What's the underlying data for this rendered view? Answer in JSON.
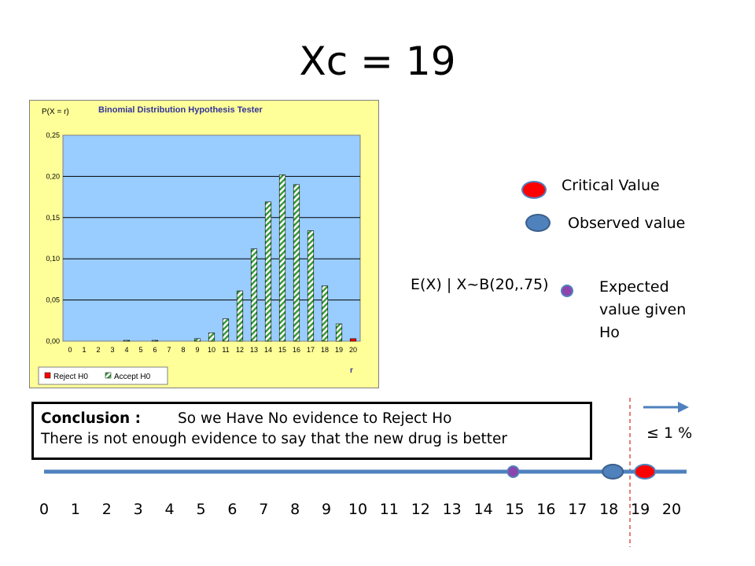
{
  "title": "Xc = 19",
  "chart_data": {
    "type": "bar",
    "title": "Binomial Distribution Hypothesis Tester",
    "ylabel": "P(X = r)",
    "xlabel": "r",
    "ylim": [
      0,
      0.25
    ],
    "yticks": [
      "0,00",
      "0,05",
      "0,10",
      "0,15",
      "0,20",
      "0,25"
    ],
    "categories": [
      "0",
      "1",
      "2",
      "3",
      "4",
      "5",
      "6",
      "7",
      "8",
      "9",
      "10",
      "11",
      "12",
      "13",
      "14",
      "15",
      "16",
      "17",
      "18",
      "19",
      "20"
    ],
    "values": [
      0,
      0,
      0,
      0,
      0.001,
      0,
      0.001,
      0,
      0,
      0.003,
      0.01,
      0.027,
      0.061,
      0.112,
      0.169,
      0.202,
      0.19,
      0.134,
      0.067,
      0.021,
      0.003
    ],
    "reject_categories": [
      "20"
    ],
    "legend": [
      "Reject H0",
      "Accept H0"
    ],
    "legend_position": "bottom-left",
    "grid": true,
    "colors": {
      "plot_bg": "#99ccff",
      "panel_bg": "#ffff99",
      "reject": "#ff0000",
      "accept_stripe": "#339933",
      "title_color": "#333399"
    }
  },
  "legend": {
    "critical_label": "Critical Value",
    "observed_label": "Observed value",
    "critical_color": "#ff0000",
    "observed_color": "#4f81bd",
    "expected_color": "#8e44ad"
  },
  "expected": {
    "formula": "E(X) | X~B(20,.75)",
    "caption": "Expected value given Ho"
  },
  "conclusion": {
    "heading": "Conclusion :",
    "line1": "So we Have No evidence to Reject Ho",
    "line2": "There is not enough evidence to say that the new drug is better"
  },
  "threshold": "≤ 1 %",
  "number_line": {
    "ticks": [
      "0",
      "1",
      "2",
      "3",
      "4",
      "5",
      "6",
      "7",
      "8",
      "9",
      "10",
      "11",
      "12",
      "13",
      "14",
      "15",
      "16",
      "17",
      "18",
      "19",
      "20"
    ],
    "expected_value": 15,
    "observed_value": 18,
    "critical_value": 19,
    "line_color": "#4f81bd"
  }
}
